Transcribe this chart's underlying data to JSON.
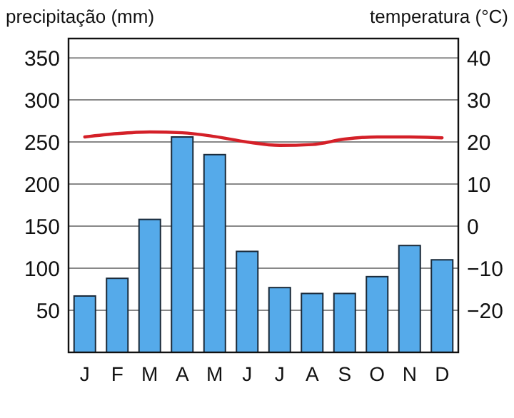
{
  "chart_data": {
    "type": "bar",
    "ylabel": "precipitação (mm)",
    "y2label": "temperatura (°C)",
    "categories": [
      "J",
      "F",
      "M",
      "A",
      "M",
      "J",
      "J",
      "A",
      "S",
      "O",
      "N",
      "D"
    ],
    "series": [
      {
        "color": "#55aaea",
        "values": [
          67,
          88,
          158,
          256,
          235,
          120,
          77,
          70,
          70,
          90,
          127,
          110
        ]
      },
      {
        "type": "line",
        "axis": "y2",
        "color": "#d42028",
        "values": [
          21.2,
          22,
          22.4,
          22.2,
          21.3,
          20,
          19.2,
          19.4,
          20.7,
          21.2,
          21.2,
          21
        ]
      }
    ],
    "ylim": [
      0,
      373
    ],
    "yticks": [
      50,
      100,
      150,
      200,
      250,
      300,
      350
    ],
    "y2lim": [
      -30,
      44.6
    ],
    "y2ticks": [
      -20,
      -10,
      0,
      10,
      20,
      30,
      40
    ],
    "grid": "y",
    "line_style": "solid",
    "marker": "none"
  }
}
